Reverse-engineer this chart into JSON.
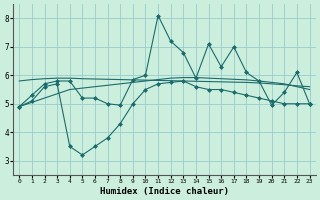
{
  "xlabel": "Humidex (Indice chaleur)",
  "x": [
    0,
    1,
    2,
    3,
    4,
    5,
    6,
    7,
    8,
    9,
    10,
    11,
    12,
    13,
    14,
    15,
    16,
    17,
    18,
    19,
    20,
    21,
    22,
    23
  ],
  "line1": [
    4.9,
    5.3,
    5.7,
    5.8,
    5.8,
    5.2,
    5.2,
    5.0,
    4.95,
    5.85,
    6.0,
    8.1,
    7.2,
    6.8,
    5.9,
    7.1,
    6.3,
    7.0,
    6.1,
    5.8,
    4.95,
    5.4,
    6.1,
    5.0
  ],
  "line2": [
    4.9,
    5.1,
    5.6,
    5.7,
    3.5,
    3.2,
    3.5,
    3.8,
    4.3,
    5.0,
    5.5,
    5.7,
    5.75,
    5.8,
    5.6,
    5.5,
    5.5,
    5.4,
    5.3,
    5.2,
    5.1,
    5.0,
    5.0,
    5.0
  ],
  "line3": [
    4.9,
    5.05,
    5.2,
    5.35,
    5.5,
    5.55,
    5.6,
    5.65,
    5.7,
    5.75,
    5.8,
    5.85,
    5.9,
    5.92,
    5.92,
    5.9,
    5.88,
    5.86,
    5.84,
    5.8,
    5.75,
    5.7,
    5.6,
    5.5
  ],
  "line4": [
    5.8,
    5.85,
    5.88,
    5.9,
    5.9,
    5.88,
    5.87,
    5.86,
    5.85,
    5.84,
    5.83,
    5.82,
    5.81,
    5.8,
    5.79,
    5.78,
    5.77,
    5.76,
    5.75,
    5.73,
    5.7,
    5.67,
    5.63,
    5.6
  ],
  "bg_color": "#cceedd",
  "line_color": "#1a6b6b",
  "grid_color": "#99cccc",
  "ylim": [
    2.5,
    8.5
  ],
  "xlim": [
    -0.5,
    23.5
  ],
  "yticks": [
    3,
    4,
    5,
    6,
    7,
    8
  ],
  "xticks": [
    0,
    1,
    2,
    3,
    4,
    5,
    6,
    7,
    8,
    9,
    10,
    11,
    12,
    13,
    14,
    15,
    16,
    17,
    18,
    19,
    20,
    21,
    22,
    23
  ]
}
